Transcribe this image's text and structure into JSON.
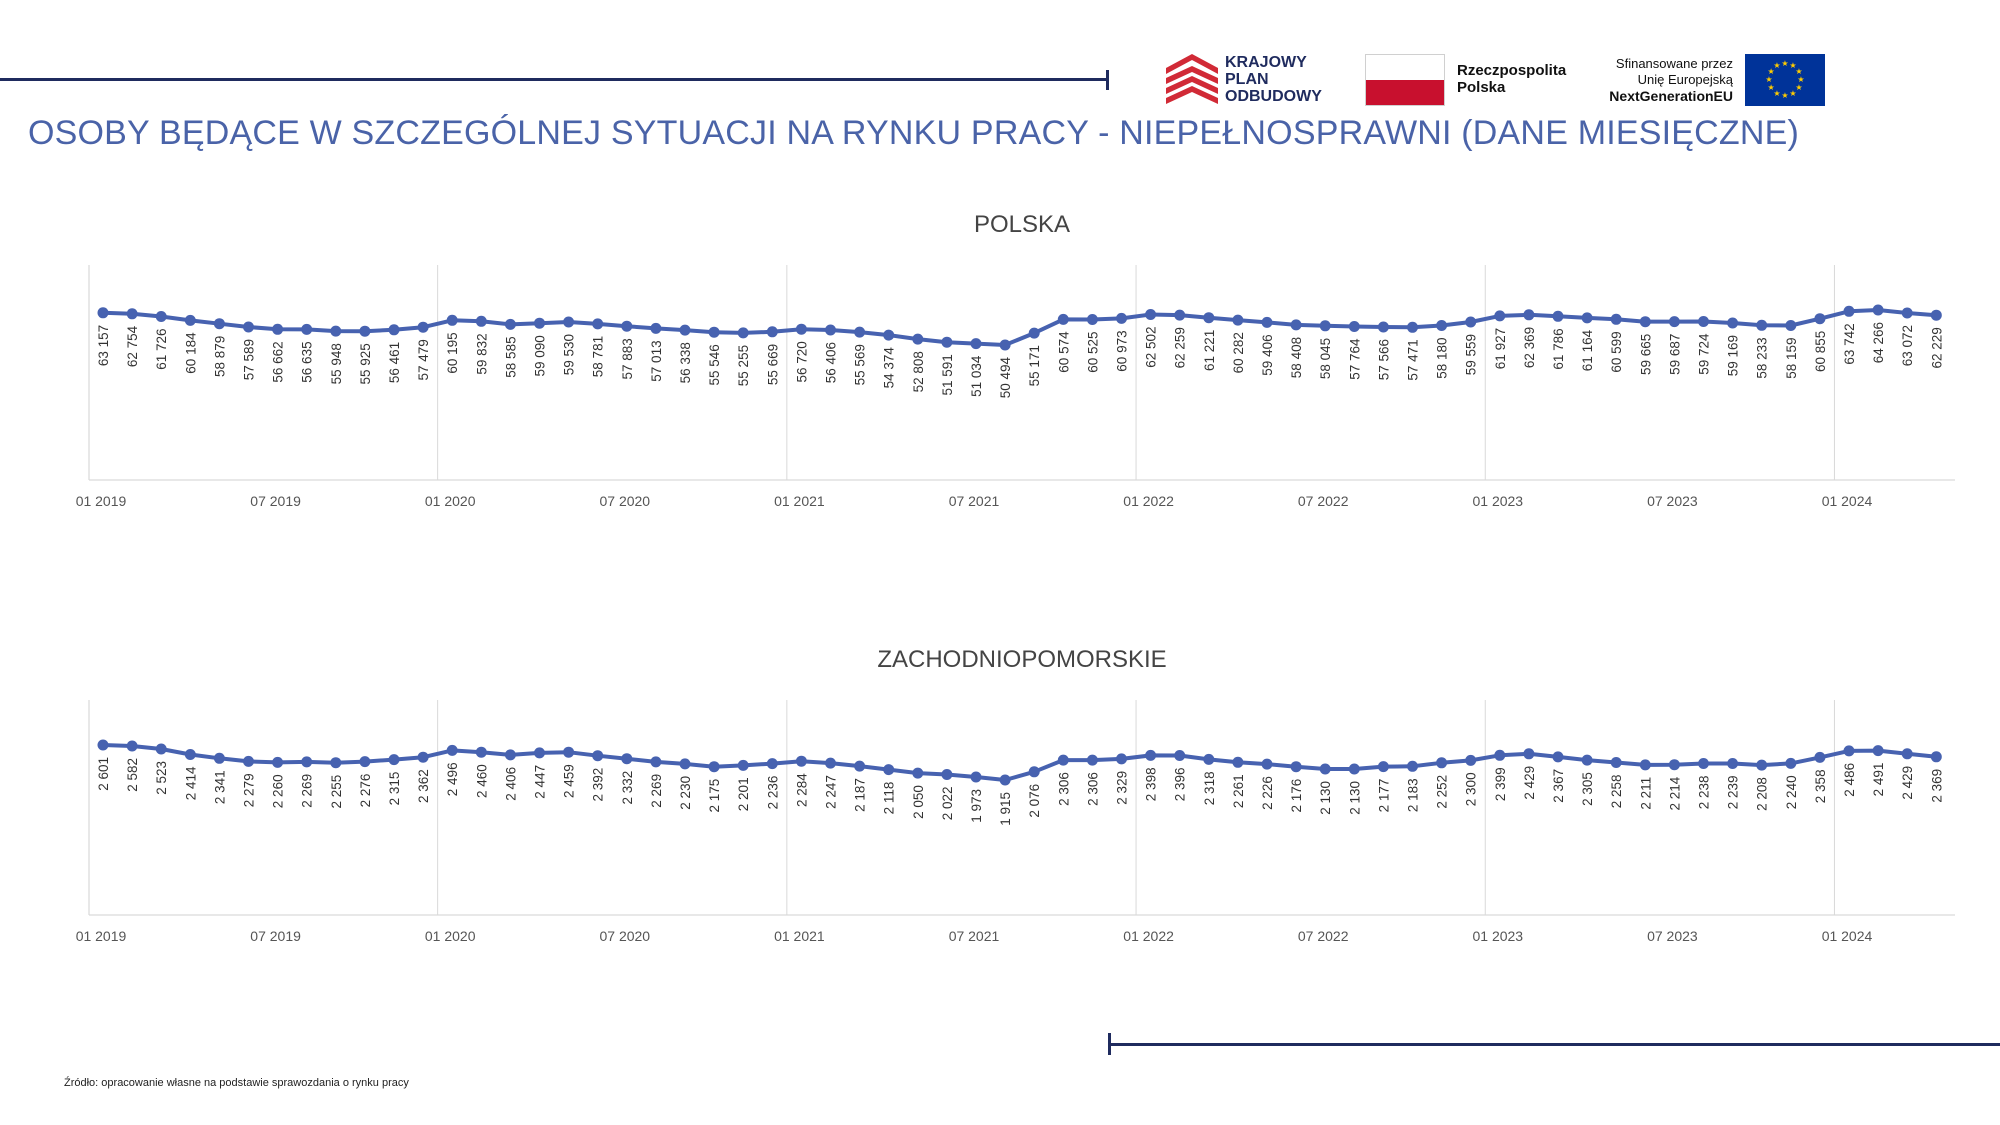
{
  "header": {
    "title": "OSOBY BĘDĄCE W SZCZEGÓLNEJ SYTUACJI NA RYNKU PRACY - NIEPEŁNOSPRAWNI (DANE MIESIĘCZNE)",
    "logos": {
      "kpo": [
        "KRAJOWY",
        "PLAN",
        "ODBUDOWY"
      ],
      "rp": [
        "Rzeczpospolita",
        "Polska"
      ],
      "eu": [
        "Sfinansowane przez",
        "Unię Europejską",
        "NextGenerationEU"
      ]
    },
    "colors": {
      "title": "#4a63a8",
      "accent_line": "#1f2b5e",
      "kpo_red": "#d12a36",
      "eu_blue": "#003399",
      "eu_stars": "#ffcc00"
    }
  },
  "footer": {
    "source": "Źródło: opracowanie własne na podstawie sprawozdania o rynku pracy"
  },
  "chart_data": [
    {
      "type": "line",
      "title": "POLSKA",
      "x_tick_labels": [
        "01 2019",
        "07 2019",
        "01 2020",
        "07 2020",
        "01 2021",
        "07 2021",
        "01 2022",
        "07 2022",
        "01 2023",
        "07 2023",
        "01 2024"
      ],
      "x": [
        "2019-01",
        "2019-02",
        "2019-03",
        "2019-04",
        "2019-05",
        "2019-06",
        "2019-07",
        "2019-08",
        "2019-09",
        "2019-10",
        "2019-11",
        "2019-12",
        "2020-01",
        "2020-02",
        "2020-03",
        "2020-04",
        "2020-05",
        "2020-06",
        "2020-07",
        "2020-08",
        "2020-09",
        "2020-10",
        "2020-11",
        "2020-12",
        "2021-01",
        "2021-02",
        "2021-03",
        "2021-04",
        "2021-05",
        "2021-06",
        "2021-07",
        "2021-08",
        "2021-09",
        "2021-10",
        "2021-11",
        "2021-12",
        "2022-01",
        "2022-02",
        "2022-03",
        "2022-04",
        "2022-05",
        "2022-06",
        "2022-07",
        "2022-08",
        "2022-09",
        "2022-10",
        "2022-11",
        "2022-12",
        "2023-01",
        "2023-02",
        "2023-03",
        "2023-04",
        "2023-05",
        "2023-06",
        "2023-07",
        "2023-08",
        "2023-09",
        "2023-10",
        "2023-11",
        "2023-12",
        "2024-01",
        "2024-02",
        "2024-03",
        "2024-04"
      ],
      "values": [
        63157,
        62754,
        61726,
        60184,
        58879,
        57589,
        56662,
        56635,
        55948,
        55925,
        56461,
        57479,
        60195,
        59832,
        58585,
        59090,
        59530,
        58781,
        57883,
        57013,
        56338,
        55546,
        55255,
        55669,
        56720,
        56406,
        55569,
        54374,
        52808,
        51591,
        51034,
        50494,
        55171,
        60574,
        60525,
        60973,
        62502,
        62259,
        61221,
        60282,
        59406,
        58408,
        58045,
        57764,
        57566,
        57471,
        58180,
        59559,
        61927,
        62369,
        61786,
        61164,
        60599,
        59665,
        59687,
        59724,
        59169,
        58233,
        58159,
        60855,
        63742,
        64266,
        63072,
        62229
      ],
      "labels": [
        "63 157",
        "62 754",
        "61 726",
        "60 184",
        "58 879",
        "57 589",
        "56 662",
        "56 635",
        "55 948",
        "55 925",
        "56 461",
        "57 479",
        "60 195",
        "59 832",
        "58 585",
        "59 090",
        "59 530",
        "58 781",
        "57 883",
        "57 013",
        "56 338",
        "55 546",
        "55 255",
        "55 669",
        "56 720",
        "56 406",
        "55 569",
        "54 374",
        "52 808",
        "51 591",
        "51 034",
        "50 494",
        "55 171",
        "60 574",
        "60 525",
        "60 973",
        "62 502",
        "62 259",
        "61 221",
        "60 282",
        "59 406",
        "58 408",
        "58 045",
        "57 764",
        "57 566",
        "57 471",
        "58 180",
        "59 559",
        "61 927",
        "62 369",
        "61 786",
        "61 164",
        "60 599",
        "59 665",
        "59 687",
        "59 724",
        "59 169",
        "58 233",
        "58 159",
        "60 855",
        "63 742",
        "64 266",
        "63 072",
        "62 229"
      ],
      "grid": "vertical at January",
      "color": "#4762b0"
    },
    {
      "type": "line",
      "title": "ZACHODNIOPOMORSKIE",
      "x_tick_labels": [
        "01 2019",
        "07 2019",
        "01 2020",
        "07 2020",
        "01 2021",
        "07 2021",
        "01 2022",
        "07 2022",
        "01 2023",
        "07 2023",
        "01 2024"
      ],
      "x": [
        "2019-01",
        "2019-02",
        "2019-03",
        "2019-04",
        "2019-05",
        "2019-06",
        "2019-07",
        "2019-08",
        "2019-09",
        "2019-10",
        "2019-11",
        "2019-12",
        "2020-01",
        "2020-02",
        "2020-03",
        "2020-04",
        "2020-05",
        "2020-06",
        "2020-07",
        "2020-08",
        "2020-09",
        "2020-10",
        "2020-11",
        "2020-12",
        "2021-01",
        "2021-02",
        "2021-03",
        "2021-04",
        "2021-05",
        "2021-06",
        "2021-07",
        "2021-08",
        "2021-09",
        "2021-10",
        "2021-11",
        "2021-12",
        "2022-01",
        "2022-02",
        "2022-03",
        "2022-04",
        "2022-05",
        "2022-06",
        "2022-07",
        "2022-08",
        "2022-09",
        "2022-10",
        "2022-11",
        "2022-12",
        "2023-01",
        "2023-02",
        "2023-03",
        "2023-04",
        "2023-05",
        "2023-06",
        "2023-07",
        "2023-08",
        "2023-09",
        "2023-10",
        "2023-11",
        "2023-12",
        "2024-01",
        "2024-02",
        "2024-03",
        "2024-04"
      ],
      "values": [
        2601,
        2582,
        2523,
        2414,
        2341,
        2279,
        2260,
        2269,
        2255,
        2276,
        2315,
        2362,
        2496,
        2460,
        2406,
        2447,
        2459,
        2392,
        2332,
        2269,
        2230,
        2175,
        2201,
        2236,
        2284,
        2247,
        2187,
        2118,
        2050,
        2022,
        1973,
        1915,
        2076,
        2306,
        2306,
        2329,
        2398,
        2396,
        2318,
        2261,
        2226,
        2176,
        2130,
        2130,
        2177,
        2183,
        2252,
        2300,
        2399,
        2429,
        2367,
        2305,
        2258,
        2211,
        2214,
        2238,
        2239,
        2208,
        2240,
        2358,
        2486,
        2491,
        2429,
        2369
      ],
      "labels": [
        "2 601",
        "2 582",
        "2 523",
        "2 414",
        "2 341",
        "2 279",
        "2 260",
        "2 269",
        "2 255",
        "2 276",
        "2 315",
        "2 362",
        "2 496",
        "2 460",
        "2 406",
        "2 447",
        "2 459",
        "2 392",
        "2 332",
        "2 269",
        "2 230",
        "2 175",
        "2 201",
        "2 236",
        "2 284",
        "2 247",
        "2 187",
        "2 118",
        "2 050",
        "2 022",
        "1 973",
        "1 915",
        "2 076",
        "2 306",
        "2 306",
        "2 329",
        "2 398",
        "2 396",
        "2 318",
        "2 261",
        "2 226",
        "2 176",
        "2 130",
        "2 130",
        "2 177",
        "2 183",
        "2 252",
        "2 300",
        "2 399",
        "2 429",
        "2 367",
        "2 305",
        "2 258",
        "2 211",
        "2 214",
        "2 238",
        "2 239",
        "2 208",
        "2 240",
        "2 358",
        "2 486",
        "2 491",
        "2 429",
        "2 369"
      ],
      "grid": "vertical at January",
      "color": "#4762b0"
    }
  ]
}
